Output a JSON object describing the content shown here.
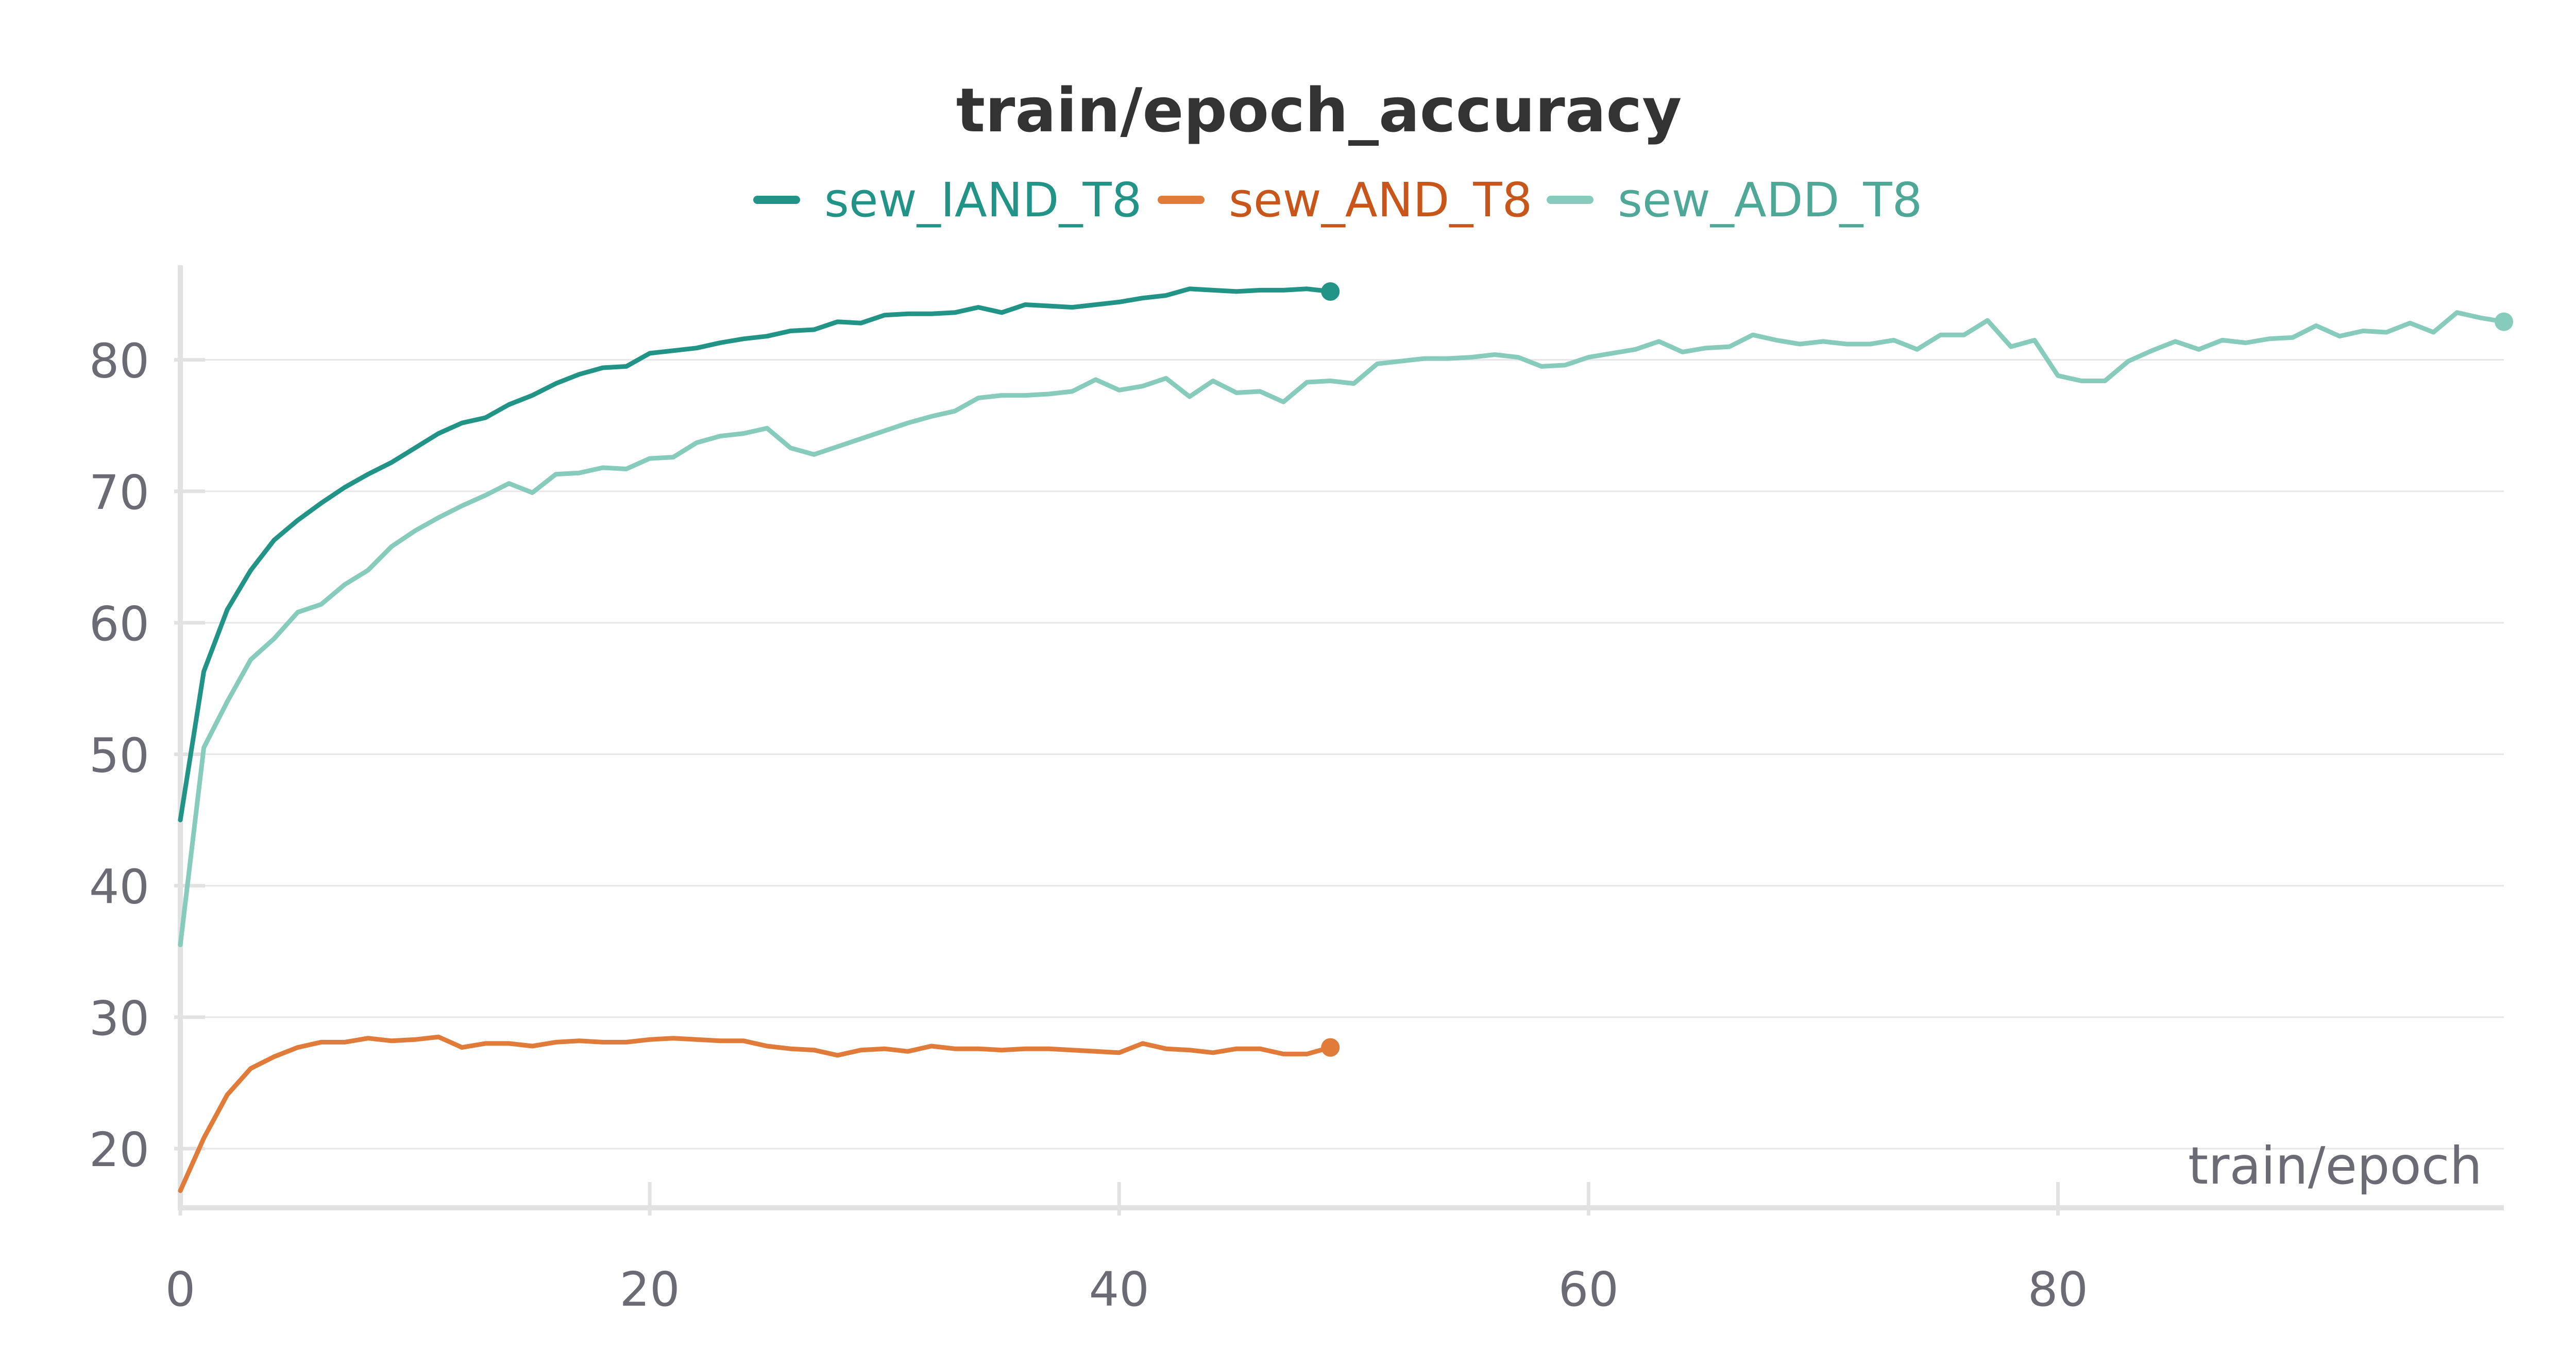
{
  "chart_data": {
    "type": "line",
    "title": "train/epoch_accuracy",
    "xlabel": "train/epoch",
    "ylabel": "",
    "xlim": [
      0,
      99
    ],
    "ylim": [
      15.5,
      87
    ],
    "x_ticks": [
      0,
      20,
      40,
      60,
      80
    ],
    "y_ticks": [
      20,
      30,
      40,
      50,
      60,
      70,
      80
    ],
    "grid": true,
    "legend_position": "top-center",
    "series": [
      {
        "name": "sew_IAND_T8",
        "color": "#229487",
        "x": [
          0,
          1,
          2,
          3,
          4,
          5,
          6,
          7,
          8,
          9,
          10,
          11,
          12,
          13,
          14,
          15,
          16,
          17,
          18,
          19,
          20,
          21,
          22,
          23,
          24,
          25,
          26,
          27,
          28,
          29,
          30,
          31,
          32,
          33,
          34,
          35,
          36,
          37,
          38,
          39,
          40,
          41,
          42,
          43,
          44,
          45,
          46,
          47,
          48,
          49
        ],
        "values": [
          45.0,
          56.3,
          61.0,
          64.0,
          66.3,
          67.8,
          69.1,
          70.3,
          71.3,
          72.2,
          73.3,
          74.4,
          75.2,
          75.6,
          76.6,
          77.3,
          78.2,
          78.9,
          79.4,
          79.5,
          80.5,
          80.7,
          80.9,
          81.3,
          81.6,
          81.8,
          82.2,
          82.3,
          82.9,
          82.8,
          83.4,
          83.5,
          83.5,
          83.6,
          84.0,
          83.6,
          84.2,
          84.1,
          84.0,
          84.2,
          84.4,
          84.7,
          84.9,
          85.4,
          85.3,
          85.2,
          85.3,
          85.3,
          85.4,
          85.2
        ]
      },
      {
        "name": "sew_AND_T8",
        "color": "#e07b39",
        "x": [
          0,
          1,
          2,
          3,
          4,
          5,
          6,
          7,
          8,
          9,
          10,
          11,
          12,
          13,
          14,
          15,
          16,
          17,
          18,
          19,
          20,
          21,
          22,
          23,
          24,
          25,
          26,
          27,
          28,
          29,
          30,
          31,
          32,
          33,
          34,
          35,
          36,
          37,
          38,
          39,
          40,
          41,
          42,
          43,
          44,
          45,
          46,
          47,
          48,
          49
        ],
        "values": [
          16.8,
          20.8,
          24.1,
          26.1,
          27.0,
          27.7,
          28.1,
          28.1,
          28.4,
          28.2,
          28.3,
          28.5,
          27.7,
          28.0,
          28.0,
          27.8,
          28.1,
          28.2,
          28.1,
          28.1,
          28.3,
          28.4,
          28.3,
          28.2,
          28.2,
          27.8,
          27.6,
          27.5,
          27.1,
          27.5,
          27.6,
          27.4,
          27.8,
          27.6,
          27.6,
          27.5,
          27.6,
          27.6,
          27.5,
          27.4,
          27.3,
          28.0,
          27.6,
          27.5,
          27.3,
          27.6,
          27.6,
          27.2,
          27.2,
          27.7
        ]
      },
      {
        "name": "sew_ADD_T8",
        "color": "#87cbbd",
        "x": [
          0,
          1,
          2,
          3,
          4,
          5,
          6,
          7,
          8,
          9,
          10,
          11,
          12,
          13,
          14,
          15,
          16,
          17,
          18,
          19,
          20,
          21,
          22,
          23,
          24,
          25,
          26,
          27,
          28,
          29,
          30,
          31,
          32,
          33,
          34,
          35,
          36,
          37,
          38,
          39,
          40,
          41,
          42,
          43,
          44,
          45,
          46,
          47,
          48,
          49,
          50,
          51,
          52,
          53,
          54,
          55,
          56,
          57,
          58,
          59,
          60,
          61,
          62,
          63,
          64,
          65,
          66,
          67,
          68,
          69,
          70,
          71,
          72,
          73,
          74,
          75,
          76,
          77,
          78,
          79,
          80,
          81,
          82,
          83,
          84,
          85,
          86,
          87,
          88,
          89,
          90,
          91,
          92,
          93,
          94,
          95,
          96,
          97,
          98,
          99
        ],
        "values": [
          35.5,
          50.5,
          54.0,
          57.2,
          58.8,
          60.8,
          61.4,
          62.9,
          64.0,
          65.8,
          67.0,
          68.0,
          68.9,
          69.7,
          70.6,
          69.9,
          71.3,
          71.4,
          71.8,
          71.7,
          72.5,
          72.6,
          73.7,
          74.2,
          74.4,
          74.8,
          73.3,
          72.8,
          73.4,
          74.0,
          74.6,
          75.2,
          75.7,
          76.1,
          77.1,
          77.3,
          77.3,
          77.4,
          77.6,
          78.5,
          77.7,
          78.0,
          78.6,
          77.2,
          78.4,
          77.5,
          77.6,
          76.8,
          78.3,
          78.4,
          78.2,
          79.7,
          79.9,
          80.1,
          80.1,
          80.2,
          80.4,
          80.2,
          79.5,
          79.6,
          80.2,
          80.5,
          80.8,
          81.4,
          80.6,
          80.9,
          81.0,
          81.9,
          81.5,
          81.2,
          81.4,
          81.2,
          81.2,
          81.5,
          80.8,
          81.9,
          81.9,
          83.0,
          81.0,
          81.5,
          78.8,
          78.4,
          78.4,
          79.9,
          80.7,
          81.4,
          80.8,
          81.5,
          81.3,
          81.6,
          81.7,
          82.6,
          81.8,
          82.2,
          82.1,
          82.8,
          82.1,
          83.6,
          83.2,
          82.9
        ]
      }
    ]
  }
}
